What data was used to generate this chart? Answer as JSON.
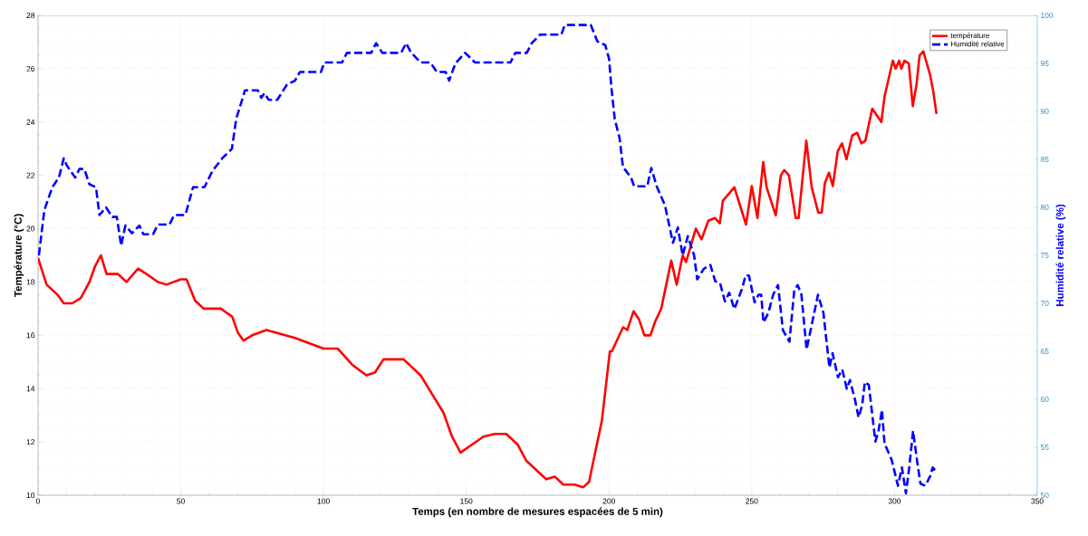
{
  "chart_data": {
    "type": "line",
    "xlabel": "Temps (en nombre de mesures espacées de 5 min)",
    "ylabel": "Température (°C)",
    "y2label": "Humidité relative (%)",
    "xlim": [
      0,
      350
    ],
    "xticks": [
      0,
      50,
      100,
      150,
      200,
      250,
      300,
      350
    ],
    "ylim": [
      10,
      28
    ],
    "yticks": [
      10,
      12,
      14,
      16,
      18,
      20,
      22,
      24,
      26,
      28
    ],
    "y2lim": [
      50,
      100
    ],
    "y2ticks": [
      50,
      55,
      60,
      65,
      70,
      75,
      80,
      85,
      90,
      95,
      100
    ],
    "grid": true,
    "legend": "top right",
    "series": [
      {
        "name": "température",
        "color": "#ff0000",
        "line_style": "solid",
        "axis": "y",
        "x": [
          0,
          3,
          7,
          9,
          12,
          15,
          18,
          20,
          22,
          24,
          28,
          31,
          35,
          38,
          42,
          45,
          50,
          52,
          55,
          58,
          64,
          68,
          70,
          72,
          75,
          80,
          90,
          100,
          105,
          110,
          115,
          118,
          121,
          128,
          131,
          134,
          138,
          142,
          145,
          148,
          152,
          156,
          160,
          164,
          168,
          171,
          175,
          178,
          181,
          184,
          188,
          191,
          193,
          197.5,
          200.3,
          201,
          204.9,
          206.4,
          208.6,
          210.5,
          212.4,
          214.5,
          216.1,
          218.3,
          221.8,
          223.7,
          225.8,
          227,
          230.4,
          232.4,
          234.8,
          237.1,
          238.8,
          239.9,
          243.9,
          246.1,
          248,
          250,
          252,
          254,
          255.2,
          258.4,
          260.2,
          261.4,
          263,
          265.4,
          266.4,
          269.1,
          271,
          273.3,
          274.5,
          275.6,
          277,
          278.4,
          280.1,
          281.6,
          283.2,
          285.2,
          286.9,
          288.4,
          289.8,
          292.2,
          295.4,
          296.5,
          299.4,
          300.4,
          301.6,
          302.4,
          303.5,
          305,
          306.4,
          307.7,
          308.8,
          310.1,
          312.4,
          313.5,
          314.7
        ],
        "values": [
          18.9,
          17.9,
          17.5,
          17.2,
          17.2,
          17.4,
          18.0,
          18.6,
          19.0,
          18.3,
          18.3,
          18.0,
          18.5,
          18.3,
          18.0,
          17.9,
          18.1,
          18.1,
          17.3,
          17.0,
          17.0,
          16.7,
          16.1,
          15.8,
          16.0,
          16.2,
          15.9,
          15.5,
          15.5,
          14.9,
          14.5,
          14.6,
          15.1,
          15.1,
          14.8,
          14.5,
          13.8,
          13.1,
          12.2,
          11.6,
          11.9,
          12.2,
          12.3,
          12.3,
          11.9,
          11.3,
          10.9,
          10.6,
          10.7,
          10.4,
          10.4,
          10.3,
          10.5,
          12.8,
          15.4,
          15.4,
          16.3,
          16.2,
          16.9,
          16.6,
          16.0,
          16.0,
          16.5,
          17.0,
          18.8,
          17.9,
          19.0,
          18.75,
          20.0,
          19.6,
          20.3,
          20.4,
          20.2,
          21.05,
          21.55,
          20.8,
          20.15,
          21.6,
          20.4,
          22.5,
          21.55,
          20.5,
          22.0,
          22.2,
          22.0,
          20.4,
          20.4,
          23.3,
          21.55,
          20.6,
          20.6,
          21.7,
          22.1,
          21.6,
          22.9,
          23.2,
          22.6,
          23.5,
          23.6,
          23.2,
          23.3,
          24.5,
          24.0,
          24.95,
          26.3,
          26.0,
          26.3,
          26.0,
          26.3,
          26.2,
          24.6,
          25.4,
          26.5,
          26.65,
          25.8,
          25.2,
          24.3
        ]
      },
      {
        "name": "Humidité relative",
        "color": "#0000ff",
        "line_style": "dashed",
        "axis": "y2",
        "x": [
          0.3,
          2.2,
          5,
          7.3,
          9,
          10,
          13,
          14.5,
          16.2,
          18,
          20.3,
          21.5,
          23.8,
          26,
          27.6,
          29.1,
          30.6,
          32.9,
          35.5,
          36.9,
          40.3,
          42,
          46,
          47.7,
          51.6,
          54.3,
          58.3,
          61.1,
          64.5,
          67.9,
          69.4,
          72.5,
          77,
          78.2,
          79.3,
          80.8,
          83.8,
          87.2,
          90,
          91.7,
          99.1,
          100.3,
          106.5,
          108.2,
          116.7,
          118.4,
          120.6,
          127.2,
          128.9,
          130.7,
          134,
          137.4,
          139.7,
          142.8,
          144,
          146.2,
          149.6,
          153,
          165.5,
          167.2,
          171.2,
          172.9,
          175.9,
          183.3,
          184.5,
          193.6,
          195.9,
          198.7,
          200,
          200.9,
          202,
          203.7,
          204.9,
          207.7,
          208.8,
          213.4,
          214.8,
          216.7,
          219.6,
          222.4,
          224.1,
          225.8,
          227.6,
          229.8,
          230.9,
          233.2,
          235.5,
          237.2,
          238.9,
          240.6,
          242.1,
          243.9,
          246.7,
          247.8,
          249,
          251,
          252.4,
          253.3,
          254.1,
          255.8,
          257.5,
          259.2,
          260.9,
          263.2,
          264.9,
          266.1,
          267.4,
          269.2,
          271.1,
          273.2,
          275.1,
          277.2,
          278.3,
          280.2,
          281.7,
          283.3,
          284.4,
          286.2,
          287.4,
          288.7,
          289.6,
          291,
          293.3,
          294.4,
          295.6,
          296.5,
          299,
          301.2,
          302.6,
          304,
          305.2,
          306.5,
          308,
          309.1,
          310.8,
          312.5,
          313.4,
          314.7
        ],
        "values": [
          75.0,
          79.7,
          82.1,
          83.1,
          85.1,
          84.4,
          83.1,
          84.0,
          84.0,
          82.4,
          82.1,
          79.2,
          80.0,
          79.0,
          79.0,
          76.0,
          78.1,
          77.3,
          78.1,
          77.2,
          77.2,
          78.2,
          78.2,
          79.2,
          79.2,
          82.1,
          82.1,
          83.8,
          85.1,
          86.1,
          89.2,
          92.2,
          92.2,
          91.4,
          91.9,
          91.2,
          91.2,
          92.8,
          93.2,
          94.1,
          94.1,
          95.1,
          95.1,
          96.1,
          96.1,
          97.1,
          96.1,
          96.1,
          97.1,
          96.1,
          95.1,
          95.1,
          94.1,
          94.1,
          93.2,
          95.0,
          96.1,
          95.1,
          95.1,
          96.1,
          96.1,
          97.1,
          98.0,
          98.0,
          99.0,
          99.0,
          97.3,
          96.9,
          95.5,
          92.3,
          89.2,
          87.2,
          84.2,
          83.1,
          82.2,
          82.2,
          84.1,
          82.2,
          80.2,
          76.3,
          77.9,
          75.0,
          77.0,
          75.0,
          72.5,
          73.6,
          74.0,
          72.3,
          72.1,
          70.2,
          71.1,
          69.4,
          71.6,
          72.9,
          72.9,
          70.1,
          70.9,
          70.9,
          68.0,
          69.0,
          70.9,
          71.9,
          67.2,
          66.0,
          71.4,
          71.9,
          70.9,
          65.2,
          67.9,
          70.9,
          69.0,
          63.3,
          64.8,
          62.3,
          63.1,
          61.1,
          62.0,
          59.9,
          58.1,
          59.4,
          61.8,
          61.5,
          55.6,
          56.7,
          58.9,
          55.4,
          53.7,
          51.0,
          52.9,
          50.2,
          53.0,
          56.7,
          53.4,
          51.2,
          51.0,
          52.0,
          52.9,
          52.4
        ]
      }
    ]
  }
}
